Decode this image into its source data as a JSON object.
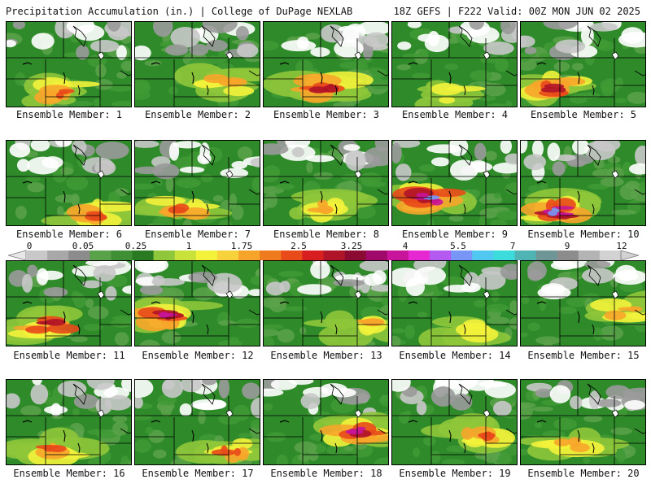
{
  "header": {
    "title_left": "Precipitation Accumulation (in.) | College of DuPage NEXLAB",
    "title_right": "18Z GEFS | F222 Valid: 00Z MON JUN 02 2025"
  },
  "colorbar": {
    "labels": [
      "0",
      "0.05",
      "0.25",
      "1",
      "1.75",
      "2.5",
      "3.25",
      "4",
      "5.5",
      "7",
      "9",
      "12"
    ],
    "colors": [
      "#c8c8c8",
      "#a8a8a8",
      "#8c8c8c",
      "#5aa24a",
      "#3f8f35",
      "#2a7a22",
      "#8fc63a",
      "#c8e23a",
      "#f2f23a",
      "#f7d23a",
      "#f7a52a",
      "#f07a1e",
      "#e84a1a",
      "#d81e1e",
      "#b01428",
      "#8a0a32",
      "#a0086a",
      "#c8149a",
      "#e628d2",
      "#b45af0",
      "#7896f5",
      "#50c8f0",
      "#3cdcdc",
      "#50b4b4",
      "#6e9696",
      "#8c8c8c",
      "#b4b4b4",
      "#d2d2d2"
    ]
  },
  "members": [
    {
      "label": "Ensemble Member: 1",
      "heavy": 0.35
    },
    {
      "label": "Ensemble Member: 2",
      "heavy": 0.15
    },
    {
      "label": "Ensemble Member: 3",
      "heavy": 0.55
    },
    {
      "label": "Ensemble Member: 4",
      "heavy": 0.05
    },
    {
      "label": "Ensemble Member: 5",
      "heavy": 0.6
    },
    {
      "label": "Ensemble Member: 6",
      "heavy": 0.45
    },
    {
      "label": "Ensemble Member: 7",
      "heavy": 0.35
    },
    {
      "label": "Ensemble Member: 8",
      "heavy": 0.2
    },
    {
      "label": "Ensemble Member: 9",
      "heavy": 0.95
    },
    {
      "label": "Ensemble Member: 10",
      "heavy": 0.9
    },
    {
      "label": "Ensemble Member: 11",
      "heavy": 0.55
    },
    {
      "label": "Ensemble Member: 12",
      "heavy": 0.8
    },
    {
      "label": "Ensemble Member: 13",
      "heavy": 0.2
    },
    {
      "label": "Ensemble Member: 14",
      "heavy": 0.05
    },
    {
      "label": "Ensemble Member: 15",
      "heavy": 0.25
    },
    {
      "label": "Ensemble Member: 16",
      "heavy": 0.35
    },
    {
      "label": "Ensemble Member: 17",
      "heavy": 0.45
    },
    {
      "label": "Ensemble Member: 18",
      "heavy": 0.85
    },
    {
      "label": "Ensemble Member: 19",
      "heavy": 0.4
    },
    {
      "label": "Ensemble Member: 20",
      "heavy": 0.1
    }
  ]
}
